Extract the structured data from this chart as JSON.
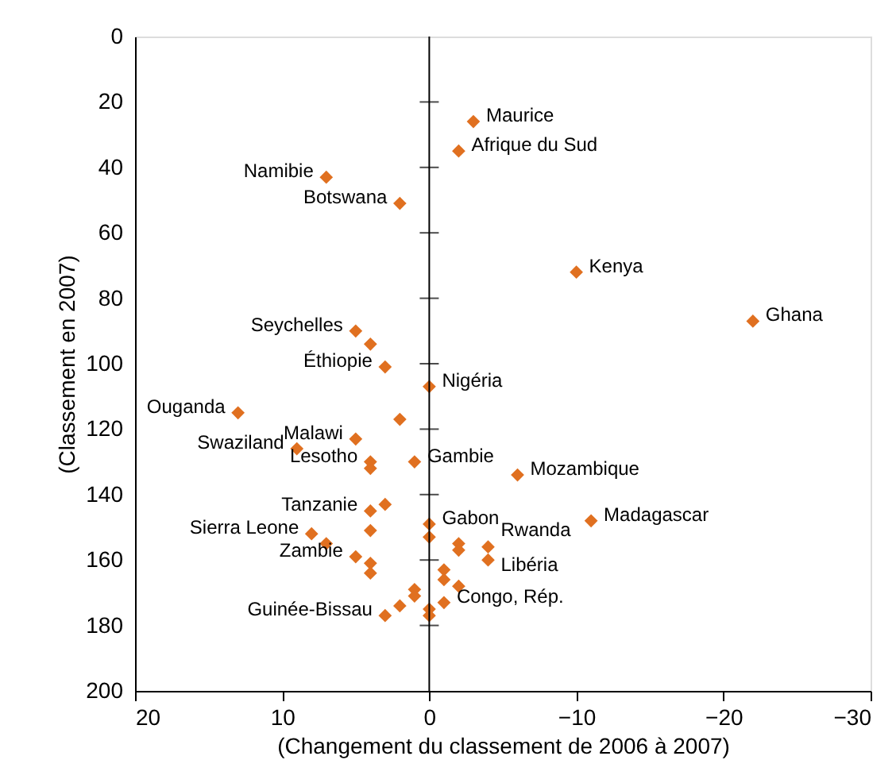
{
  "chart_data": {
    "type": "scatter",
    "xlabel": "(Changement du classement de 2006 à 2007)",
    "ylabel": "(Classement en 2007)",
    "x": [
      -3,
      -2,
      7,
      2,
      -10,
      -22,
      5,
      4,
      3,
      0,
      13,
      2,
      5,
      9,
      4,
      4,
      1,
      4,
      3,
      4,
      8,
      7,
      5,
      4,
      4,
      0,
      0,
      -2,
      -2,
      1,
      1,
      2,
      3,
      0,
      0,
      -1,
      -1,
      -2,
      -1,
      -6,
      -11,
      -4,
      -4
    ],
    "values": [
      26,
      35,
      43,
      51,
      72,
      87,
      90,
      94,
      101,
      107,
      115,
      117,
      123,
      126,
      130,
      132,
      130,
      145,
      143,
      151,
      152,
      155,
      159,
      161,
      164,
      149,
      153,
      155,
      157,
      169,
      171,
      174,
      177,
      175,
      177,
      163,
      166,
      168,
      173,
      134,
      148,
      156,
      160
    ],
    "color": "#e07020",
    "marker": "diamond",
    "grid": false,
    "xlim": [
      20,
      -30
    ],
    "xticks": [
      20,
      10,
      0,
      -10,
      -20,
      -30
    ],
    "ylim": [
      200,
      0
    ],
    "yticks": [
      0,
      20,
      40,
      60,
      80,
      100,
      120,
      140,
      160,
      180,
      200
    ],
    "ref_lines": [
      {
        "axis": "x",
        "value": 0
      }
    ],
    "annotations": [
      {
        "text": "Maurice",
        "x": -3,
        "y": 26
      },
      {
        "text": "Afrique du Sud",
        "x": -2,
        "y": 35
      },
      {
        "text": "Namibie",
        "x": 7,
        "y": 43
      },
      {
        "text": "Botswana",
        "x": 2,
        "y": 51
      },
      {
        "text": "Kenya",
        "x": -10,
        "y": 72
      },
      {
        "text": "Ghana",
        "x": -22,
        "y": 87
      },
      {
        "text": "Seychelles",
        "x": 5,
        "y": 90
      },
      {
        "text": "Éthiopie",
        "x": 3,
        "y": 101
      },
      {
        "text": "Nigéria",
        "x": 0,
        "y": 107
      },
      {
        "text": "Ouganda",
        "x": 13,
        "y": 115
      },
      {
        "text": "Malawi",
        "x": 5,
        "y": 123
      },
      {
        "text": "Swaziland",
        "x": 9,
        "y": 126
      },
      {
        "text": "Lesotho",
        "x": 4,
        "y": 130
      },
      {
        "text": "Gambie",
        "x": 1,
        "y": 130
      },
      {
        "text": "Mozambique",
        "x": -6,
        "y": 134
      },
      {
        "text": "Gabon",
        "x": 0,
        "y": 149
      },
      {
        "text": "Madagascar",
        "x": -11,
        "y": 148
      },
      {
        "text": "Tanzanie",
        "x": 4,
        "y": 145
      },
      {
        "text": "Rwanda",
        "x": -4,
        "y": 156
      },
      {
        "text": "Sierra Leone",
        "x": 8,
        "y": 152
      },
      {
        "text": "Libéria",
        "x": -4,
        "y": 160
      },
      {
        "text": "Zambie",
        "x": 5,
        "y": 159
      },
      {
        "text": "Congo, Rép.",
        "x": -1,
        "y": 173
      },
      {
        "text": "Guinée-Bissau",
        "x": 3,
        "y": 177
      }
    ]
  }
}
